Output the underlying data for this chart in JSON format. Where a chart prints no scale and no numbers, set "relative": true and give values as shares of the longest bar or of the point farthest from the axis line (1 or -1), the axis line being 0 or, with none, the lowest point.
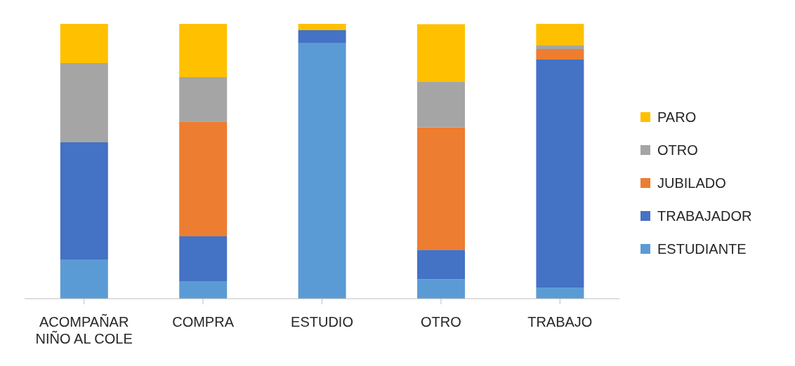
{
  "chart_data": {
    "type": "bar",
    "stacked": true,
    "relative": true,
    "legend": "right",
    "grid": false,
    "categories": [
      "ACOMPAÑAR NIÑO AL COLE",
      "COMPRA",
      "ESTUDIO",
      "OTRO",
      "TRABAJO"
    ],
    "series": [
      {
        "name": "ESTUDIANTE",
        "color": "#5b9bd5",
        "values": [
          0.143,
          0.064,
          0.929,
          0.071,
          0.041
        ]
      },
      {
        "name": "TRABAJADOR",
        "color": "#4472c4",
        "values": [
          0.426,
          0.163,
          0.048,
          0.107,
          0.829
        ]
      },
      {
        "name": "JUBILADO",
        "color": "#ed7d31",
        "values": [
          0,
          0.418,
          0,
          0.446,
          0.038
        ]
      },
      {
        "name": "OTRO",
        "color": "#a5a5a5",
        "values": [
          0.288,
          0.161,
          0,
          0.166,
          0.015
        ]
      },
      {
        "name": "PARO",
        "color": "#ffc000",
        "values": [
          0.143,
          0.194,
          0.023,
          0.209,
          0.077
        ]
      }
    ]
  }
}
